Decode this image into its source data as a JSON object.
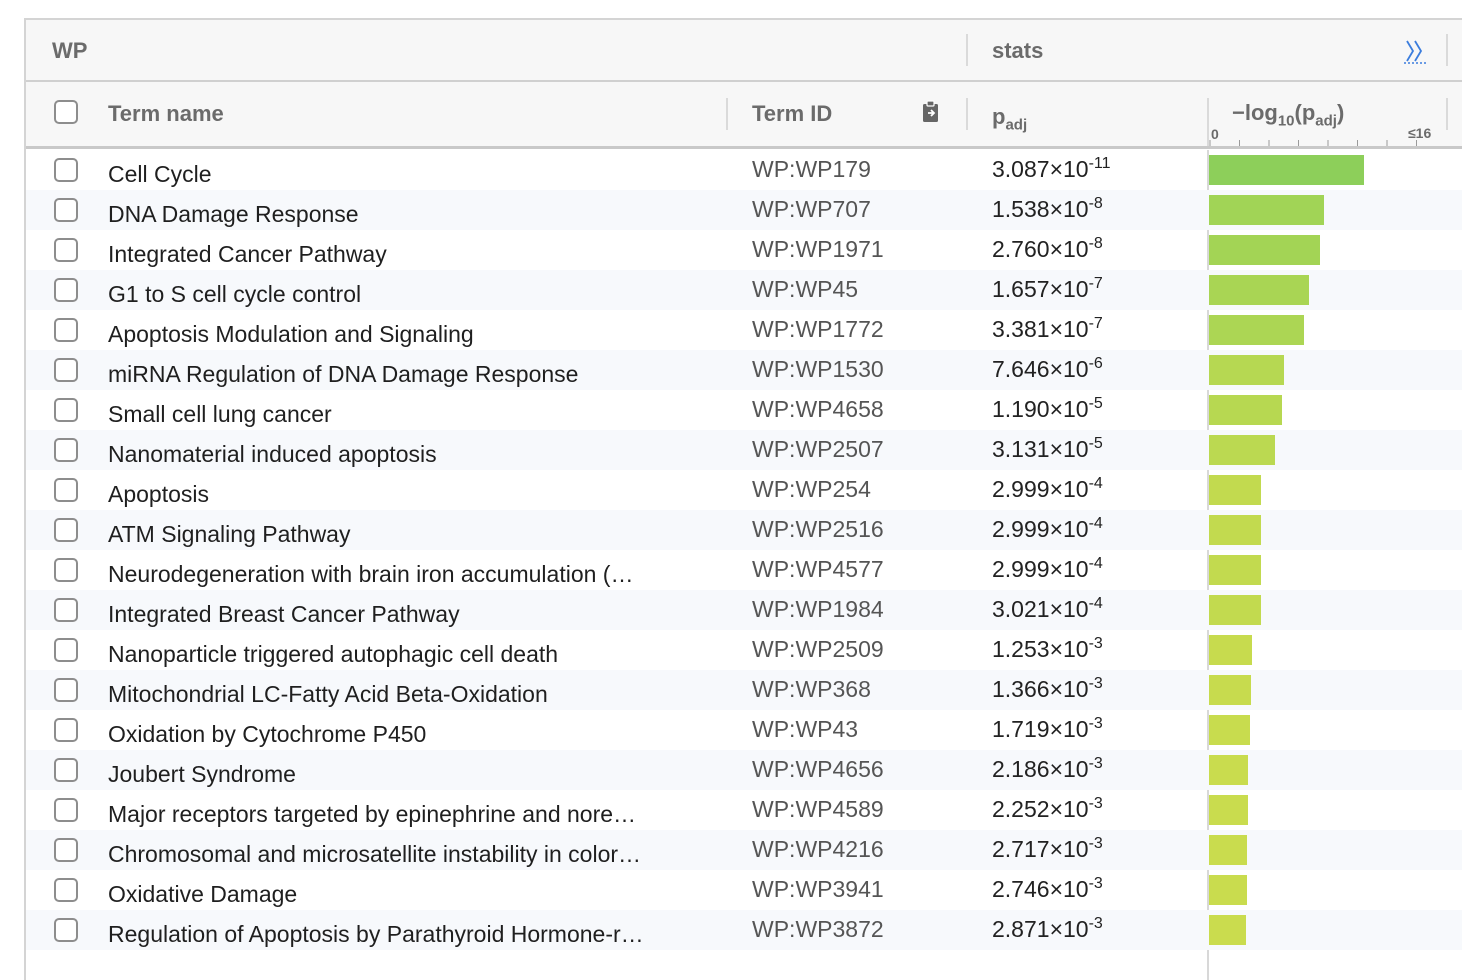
{
  "header": {
    "source": "WP",
    "stats": "stats",
    "expand_icon": "double-chevron-right-icon"
  },
  "columns": {
    "term_name": "Term name",
    "term_id": "Term ID",
    "padj_base": "p",
    "padj_sub": "adj",
    "neglog_prefix": "−log",
    "neglog_sub10": "10",
    "neglog_open": "(p",
    "neglog_sub_adj": "adj",
    "neglog_close": ")",
    "axis_min": "0",
    "axis_max": "≤16",
    "clipboard_icon": "clipboard-icon"
  },
  "colors": {
    "bar_scale": [
      "#8bcf5a",
      "#dde04a"
    ]
  },
  "axis_max_value": 16,
  "rows": [
    {
      "term": "Cell Cycle",
      "id": "WP:WP179",
      "mantissa": "3.087",
      "exp": "-11",
      "p": 3.087e-11
    },
    {
      "term": "DNA Damage Response",
      "id": "WP:WP707",
      "mantissa": "1.538",
      "exp": "-8",
      "p": 1.538e-08
    },
    {
      "term": "Integrated Cancer Pathway",
      "id": "WP:WP1971",
      "mantissa": "2.760",
      "exp": "-8",
      "p": 2.76e-08
    },
    {
      "term": "G1 to S cell cycle control",
      "id": "WP:WP45",
      "mantissa": "1.657",
      "exp": "-7",
      "p": 1.657e-07
    },
    {
      "term": "Apoptosis Modulation and Signaling",
      "id": "WP:WP1772",
      "mantissa": "3.381",
      "exp": "-7",
      "p": 3.381e-07
    },
    {
      "term": "miRNA Regulation of DNA Damage Response",
      "id": "WP:WP1530",
      "mantissa": "7.646",
      "exp": "-6",
      "p": 7.646e-06
    },
    {
      "term": "Small cell lung cancer",
      "id": "WP:WP4658",
      "mantissa": "1.190",
      "exp": "-5",
      "p": 1.19e-05
    },
    {
      "term": "Nanomaterial induced apoptosis",
      "id": "WP:WP2507",
      "mantissa": "3.131",
      "exp": "-5",
      "p": 3.131e-05
    },
    {
      "term": "Apoptosis",
      "id": "WP:WP254",
      "mantissa": "2.999",
      "exp": "-4",
      "p": 0.0002999
    },
    {
      "term": "ATM Signaling Pathway",
      "id": "WP:WP2516",
      "mantissa": "2.999",
      "exp": "-4",
      "p": 0.0002999
    },
    {
      "term": "Neurodegeneration with brain iron accumulation (…",
      "id": "WP:WP4577",
      "mantissa": "2.999",
      "exp": "-4",
      "p": 0.0002999
    },
    {
      "term": "Integrated Breast Cancer Pathway",
      "id": "WP:WP1984",
      "mantissa": "3.021",
      "exp": "-4",
      "p": 0.0003021
    },
    {
      "term": "Nanoparticle triggered autophagic cell death",
      "id": "WP:WP2509",
      "mantissa": "1.253",
      "exp": "-3",
      "p": 0.001253
    },
    {
      "term": "Mitochondrial LC-Fatty Acid Beta-Oxidation",
      "id": "WP:WP368",
      "mantissa": "1.366",
      "exp": "-3",
      "p": 0.001366
    },
    {
      "term": "Oxidation by Cytochrome P450",
      "id": "WP:WP43",
      "mantissa": "1.719",
      "exp": "-3",
      "p": 0.001719
    },
    {
      "term": "Joubert Syndrome",
      "id": "WP:WP4656",
      "mantissa": "2.186",
      "exp": "-3",
      "p": 0.002186
    },
    {
      "term": "Major receptors targeted by epinephrine and nore…",
      "id": "WP:WP4589",
      "mantissa": "2.252",
      "exp": "-3",
      "p": 0.002252
    },
    {
      "term": "Chromosomal and microsatellite instability in color…",
      "id": "WP:WP4216",
      "mantissa": "2.717",
      "exp": "-3",
      "p": 0.002717
    },
    {
      "term": "Oxidative Damage",
      "id": "WP:WP3941",
      "mantissa": "2.746",
      "exp": "-3",
      "p": 0.002746
    },
    {
      "term": "Regulation of Apoptosis by Parathyroid Hormone-r…",
      "id": "WP:WP3872",
      "mantissa": "2.871",
      "exp": "-3",
      "p": 0.002871
    }
  ]
}
